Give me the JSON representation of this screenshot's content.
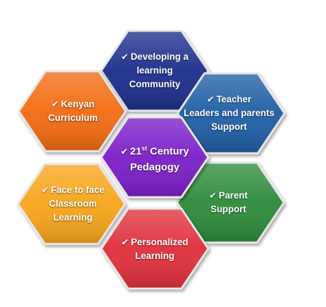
{
  "diagram": {
    "check_glyph": "✔",
    "hexes": [
      {
        "id": "developing-community",
        "color": "#1c2f8c",
        "lines": [
          "Developing a",
          "learning",
          "Community"
        ]
      },
      {
        "id": "teacher-leaders",
        "color": "#1f5fa6",
        "lines": [
          "Teacher",
          "Leaders and parents",
          "Support"
        ]
      },
      {
        "id": "kenyan-curriculum",
        "color": "#f26c12",
        "lines": [
          "Kenyan",
          "Curriculum"
        ]
      },
      {
        "id": "century-pedagogy",
        "color": "#7a1fc8",
        "lines": [
          "21",
          "Century",
          "Pedagogy"
        ],
        "superscript": "st"
      },
      {
        "id": "face-to-face",
        "color": "#f7a51b",
        "lines": [
          "Face to face",
          "Classroom",
          "Learning"
        ]
      },
      {
        "id": "parent-support",
        "color": "#2e8b3a",
        "lines": [
          "Parent",
          "Support"
        ]
      },
      {
        "id": "personalized-learning",
        "color": "#e0303b",
        "lines": [
          "Personalized",
          "Learning"
        ]
      }
    ]
  }
}
